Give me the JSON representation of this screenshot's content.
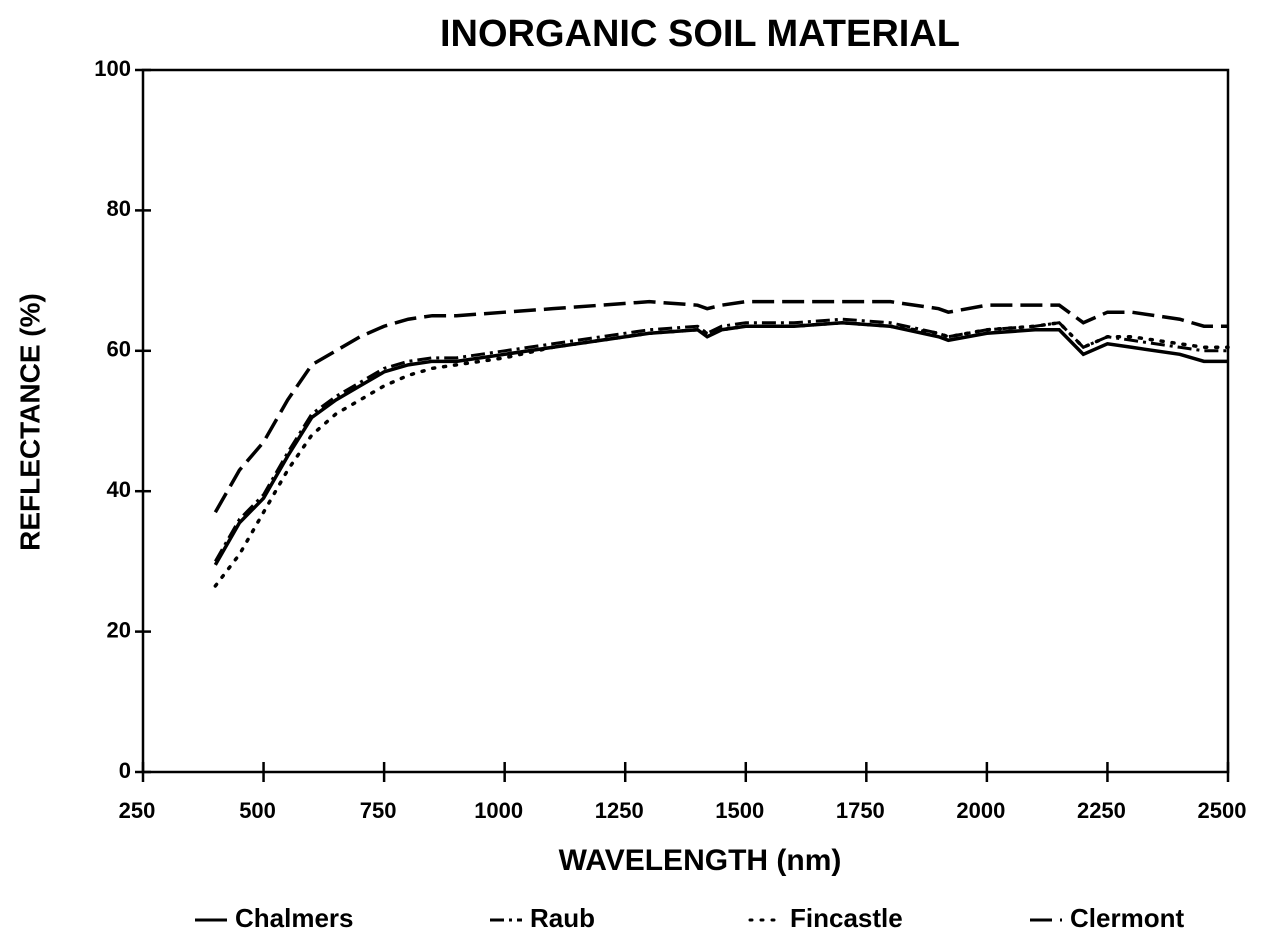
{
  "chart_data": {
    "type": "line",
    "title": "INORGANIC SOIL MATERIAL",
    "x_label": "WAVELENGTH (nm)",
    "y_label": "REFLECTANCE (%)",
    "x": [
      400,
      450,
      500,
      550,
      600,
      650,
      700,
      750,
      800,
      850,
      900,
      1000,
      1100,
      1200,
      1300,
      1400,
      1420,
      1450,
      1500,
      1600,
      1700,
      1800,
      1900,
      1920,
      2000,
      2100,
      2150,
      2200,
      2250,
      2300,
      2400,
      2450,
      2500
    ],
    "series": [
      {
        "name": "Chalmers",
        "color": "#000000",
        "style": "solid",
        "values": [
          29.5,
          35.5,
          39,
          45,
          50.5,
          53,
          55,
          57,
          58,
          58.5,
          58.5,
          59.5,
          60.5,
          61.5,
          62.5,
          63,
          62,
          63,
          63.5,
          63.5,
          64,
          63.5,
          62,
          61.5,
          62.5,
          63,
          63,
          59.5,
          61,
          60.5,
          59.5,
          58.5,
          58.5
        ]
      },
      {
        "name": "Raub",
        "color": "#000000",
        "style": "dashdot",
        "values": [
          30,
          36,
          39.5,
          45.5,
          51,
          53.5,
          55.5,
          57.5,
          58.5,
          59,
          59,
          60,
          61,
          62,
          63,
          63.5,
          62.5,
          63.5,
          64,
          64,
          64.5,
          64,
          62.5,
          62,
          63,
          63.5,
          64,
          60.5,
          62,
          61.5,
          60.5,
          60,
          60
        ]
      },
      {
        "name": "Fincastle",
        "color": "#000000",
        "style": "dotted",
        "values": [
          26.5,
          31,
          37,
          43,
          48,
          51,
          53,
          55,
          56.5,
          57.5,
          58,
          59,
          60.5,
          61.5,
          62.5,
          63,
          62.5,
          63,
          63.5,
          63.5,
          64,
          63.5,
          62.5,
          62,
          63,
          63.5,
          64,
          60.5,
          62,
          62,
          61,
          60.5,
          60.5
        ]
      },
      {
        "name": "Clermont",
        "color": "#000000",
        "style": "dashed",
        "values": [
          37,
          43,
          47,
          53,
          58,
          60,
          62,
          63.5,
          64.5,
          65,
          65,
          65.5,
          66,
          66.5,
          67,
          66.5,
          66,
          66.5,
          67,
          67,
          67,
          67,
          66,
          65.5,
          66.5,
          66.5,
          66.5,
          64,
          65.5,
          65.5,
          64.5,
          63.5,
          63.5
        ]
      }
    ],
    "xlim": [
      250,
      2500
    ],
    "ylim": [
      0,
      100
    ],
    "xticks": [
      250,
      500,
      750,
      1000,
      1250,
      1500,
      1750,
      2000,
      2250,
      2500
    ],
    "yticks": [
      0,
      20,
      40,
      60,
      80,
      100
    ]
  }
}
